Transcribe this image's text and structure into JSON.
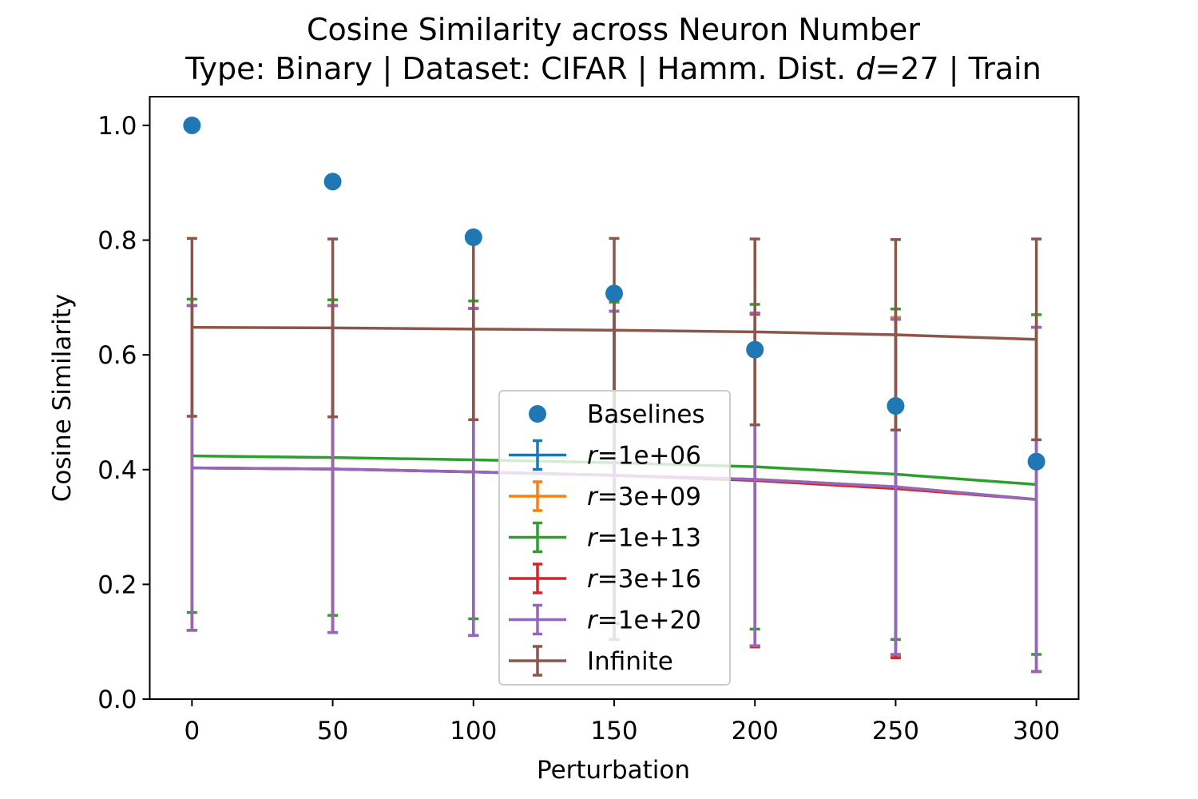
{
  "chart_data": {
    "type": "line",
    "title_line1": "Cosine Similarity across Neuron Number",
    "title_line2_prefix": "Type: Binary | Dataset: CIFAR | Hamm. Dist. ",
    "title_line2_var": "d",
    "title_line2_suffix": "=27 | Train",
    "xlabel": "Perturbation",
    "ylabel": "Cosine Similarity",
    "xlim": [
      -15,
      315
    ],
    "ylim": [
      0.0,
      1.05
    ],
    "xticks": [
      0,
      50,
      100,
      150,
      200,
      250,
      300
    ],
    "xtick_labels": [
      "0",
      "50",
      "100",
      "150",
      "200",
      "250",
      "300"
    ],
    "yticks": [
      0.0,
      0.2,
      0.4,
      0.6,
      0.8,
      1.0
    ],
    "ytick_labels": [
      "0.0",
      "0.2",
      "0.4",
      "0.6",
      "0.8",
      "1.0"
    ],
    "grid": false,
    "legend_position": "lower center",
    "x": [
      0,
      50,
      100,
      150,
      200,
      250,
      300
    ],
    "baselines": {
      "name": "Baselines",
      "color": "#1f77b4",
      "values": [
        1.0,
        0.902,
        0.805,
        0.707,
        0.609,
        0.511,
        0.414
      ]
    },
    "series": [
      {
        "var": "r",
        "suffix": "=1e+06",
        "color": "#1f77b4",
        "values": [
          0.403,
          0.401,
          0.396,
          0.39,
          0.383,
          0.37,
          0.348
        ],
        "yerr": [
          0.283,
          0.285,
          0.285,
          0.286,
          0.29,
          0.295,
          0.3
        ]
      },
      {
        "var": "r",
        "suffix": "=3e+09",
        "color": "#ff7f0e",
        "values": [
          0.403,
          0.401,
          0.396,
          0.39,
          0.383,
          0.37,
          0.348
        ],
        "yerr": [
          0.283,
          0.285,
          0.285,
          0.286,
          0.29,
          0.295,
          0.3
        ]
      },
      {
        "var": "r",
        "suffix": "=1e+13",
        "color": "#2ca02c",
        "values": [
          0.424,
          0.421,
          0.417,
          0.412,
          0.405,
          0.392,
          0.374
        ],
        "yerr": [
          0.273,
          0.275,
          0.277,
          0.28,
          0.283,
          0.288,
          0.296
        ]
      },
      {
        "var": "r",
        "suffix": "=3e+16",
        "color": "#d62728",
        "values": [
          0.403,
          0.401,
          0.396,
          0.39,
          0.381,
          0.367,
          0.348
        ],
        "yerr": [
          0.283,
          0.285,
          0.285,
          0.286,
          0.29,
          0.295,
          0.3
        ]
      },
      {
        "var": "r",
        "suffix": "=1e+20",
        "color": "#9467bd",
        "values": [
          0.403,
          0.401,
          0.396,
          0.39,
          0.383,
          0.37,
          0.348
        ],
        "yerr": [
          0.283,
          0.285,
          0.285,
          0.286,
          0.29,
          0.292,
          0.3
        ]
      },
      {
        "var": "",
        "suffix": "Infinite",
        "color": "#8c564b",
        "values": [
          0.648,
          0.647,
          0.645,
          0.643,
          0.64,
          0.635,
          0.627
        ],
        "yerr": [
          0.155,
          0.155,
          0.158,
          0.16,
          0.162,
          0.166,
          0.175
        ]
      }
    ]
  }
}
